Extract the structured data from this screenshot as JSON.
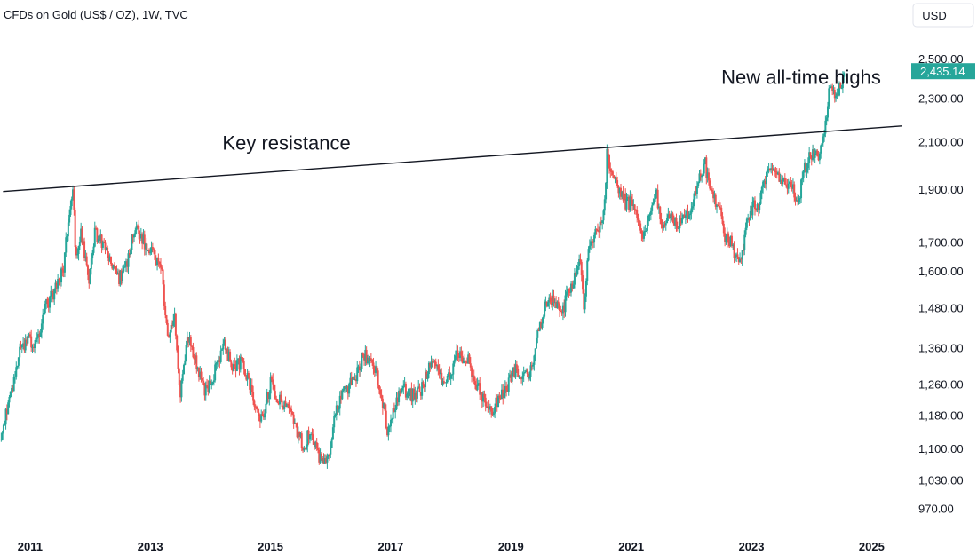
{
  "header": {
    "title": "CFDs on Gold (US$ / OZ), 1W, TVC",
    "currency_button": "USD"
  },
  "chart_data": {
    "type": "candlestick",
    "title": "CFDs on Gold (US$ / OZ), 1W, TVC",
    "y_scale": "log",
    "ylim": [
      935,
      2650
    ],
    "xlim": [
      2010.5,
      2025.6
    ],
    "y_ticks": [
      {
        "value": 2500,
        "label": "2,500.00"
      },
      {
        "value": 2300,
        "label": "2,300.00"
      },
      {
        "value": 2100,
        "label": "2,100.00"
      },
      {
        "value": 1900,
        "label": "1,900.00"
      },
      {
        "value": 1700,
        "label": "1,700.00"
      },
      {
        "value": 1600,
        "label": "1,600.00"
      },
      {
        "value": 1480,
        "label": "1,480.00"
      },
      {
        "value": 1360,
        "label": "1,360.00"
      },
      {
        "value": 1260,
        "label": "1,260.00"
      },
      {
        "value": 1180,
        "label": "1,180.00"
      },
      {
        "value": 1100,
        "label": "1,100.00"
      },
      {
        "value": 1030,
        "label": "1,030.00"
      },
      {
        "value": 970,
        "label": "970.00"
      }
    ],
    "x_ticks": [
      {
        "value": 2011,
        "label": "2011"
      },
      {
        "value": 2013,
        "label": "2013"
      },
      {
        "value": 2015,
        "label": "2015"
      },
      {
        "value": 2017,
        "label": "2017"
      },
      {
        "value": 2019,
        "label": "2019"
      },
      {
        "value": 2021,
        "label": "2021"
      },
      {
        "value": 2023,
        "label": "2023"
      },
      {
        "value": 2025,
        "label": "2025"
      }
    ],
    "last_price": {
      "value": 2435.14,
      "label": "2,435.14"
    },
    "price_path": [
      [
        2010.52,
        1120
      ],
      [
        2010.62,
        1200
      ],
      [
        2010.72,
        1260
      ],
      [
        2010.82,
        1340
      ],
      [
        2010.95,
        1390
      ],
      [
        2011.08,
        1360
      ],
      [
        2011.25,
        1480
      ],
      [
        2011.4,
        1530
      ],
      [
        2011.55,
        1600
      ],
      [
        2011.67,
        1850
      ],
      [
        2011.72,
        1900
      ],
      [
        2011.76,
        1640
      ],
      [
        2011.85,
        1730
      ],
      [
        2011.98,
        1560
      ],
      [
        2012.08,
        1740
      ],
      [
        2012.3,
        1650
      ],
      [
        2012.45,
        1570
      ],
      [
        2012.6,
        1610
      ],
      [
        2012.75,
        1760
      ],
      [
        2012.9,
        1700
      ],
      [
        2013.05,
        1670
      ],
      [
        2013.2,
        1580
      ],
      [
        2013.28,
        1390
      ],
      [
        2013.4,
        1450
      ],
      [
        2013.5,
        1230
      ],
      [
        2013.62,
        1400
      ],
      [
        2013.75,
        1320
      ],
      [
        2013.9,
        1240
      ],
      [
        2014.05,
        1280
      ],
      [
        2014.22,
        1370
      ],
      [
        2014.4,
        1300
      ],
      [
        2014.52,
        1320
      ],
      [
        2014.7,
        1230
      ],
      [
        2014.85,
        1170
      ],
      [
        2015.0,
        1260
      ],
      [
        2015.1,
        1230
      ],
      [
        2015.3,
        1200
      ],
      [
        2015.55,
        1100
      ],
      [
        2015.65,
        1140
      ],
      [
        2015.8,
        1080
      ],
      [
        2015.93,
        1060
      ],
      [
        2016.08,
        1180
      ],
      [
        2016.2,
        1240
      ],
      [
        2016.4,
        1270
      ],
      [
        2016.55,
        1340
      ],
      [
        2016.68,
        1330
      ],
      [
        2016.8,
        1270
      ],
      [
        2016.95,
        1140
      ],
      [
        2017.05,
        1200
      ],
      [
        2017.2,
        1250
      ],
      [
        2017.35,
        1230
      ],
      [
        2017.5,
        1240
      ],
      [
        2017.7,
        1340
      ],
      [
        2017.8,
        1280
      ],
      [
        2017.95,
        1270
      ],
      [
        2018.1,
        1340
      ],
      [
        2018.3,
        1320
      ],
      [
        2018.45,
        1250
      ],
      [
        2018.62,
        1190
      ],
      [
        2018.72,
        1200
      ],
      [
        2018.9,
        1240
      ],
      [
        2019.05,
        1300
      ],
      [
        2019.3,
        1280
      ],
      [
        2019.45,
        1400
      ],
      [
        2019.58,
        1500
      ],
      [
        2019.72,
        1510
      ],
      [
        2019.85,
        1470
      ],
      [
        2019.98,
        1540
      ],
      [
        2020.15,
        1640
      ],
      [
        2020.22,
        1480
      ],
      [
        2020.3,
        1700
      ],
      [
        2020.45,
        1740
      ],
      [
        2020.55,
        1820
      ],
      [
        2020.6,
        2060
      ],
      [
        2020.68,
        1940
      ],
      [
        2020.8,
        1900
      ],
      [
        2020.92,
        1840
      ],
      [
        2021.05,
        1850
      ],
      [
        2021.18,
        1700
      ],
      [
        2021.3,
        1780
      ],
      [
        2021.42,
        1880
      ],
      [
        2021.5,
        1770
      ],
      [
        2021.62,
        1800
      ],
      [
        2021.75,
        1760
      ],
      [
        2021.9,
        1790
      ],
      [
        2022.0,
        1820
      ],
      [
        2022.15,
        1950
      ],
      [
        2022.22,
        2020
      ],
      [
        2022.3,
        1900
      ],
      [
        2022.45,
        1840
      ],
      [
        2022.55,
        1720
      ],
      [
        2022.65,
        1700
      ],
      [
        2022.72,
        1650
      ],
      [
        2022.82,
        1640
      ],
      [
        2022.95,
        1790
      ],
      [
        2023.05,
        1850
      ],
      [
        2023.12,
        1820
      ],
      [
        2023.2,
        1920
      ],
      [
        2023.33,
        1990
      ],
      [
        2023.42,
        1960
      ],
      [
        2023.52,
        1920
      ],
      [
        2023.62,
        1930
      ],
      [
        2023.72,
        1880
      ],
      [
        2023.78,
        1830
      ],
      [
        2023.85,
        1980
      ],
      [
        2023.92,
        2000
      ],
      [
        2024.0,
        2050
      ],
      [
        2024.1,
        2030
      ],
      [
        2024.18,
        2070
      ],
      [
        2024.25,
        2240
      ],
      [
        2024.32,
        2390
      ],
      [
        2024.38,
        2330
      ],
      [
        2024.45,
        2340
      ],
      [
        2024.52,
        2400
      ],
      [
        2024.55,
        2435.14
      ]
    ],
    "annotations": [
      {
        "text": "New all-time highs",
        "x": 2022.5,
        "y": 2370
      },
      {
        "text": "Key resistance",
        "x": 2014.2,
        "y": 2065
      }
    ],
    "trendline": {
      "start": [
        2010.55,
        1890
      ],
      "end": [
        2025.5,
        2170
      ],
      "label": "Key resistance"
    },
    "colors": {
      "up": "#26a69a",
      "down": "#ef5350",
      "line": "#131722",
      "last_price_bg": "#26a69a"
    }
  }
}
